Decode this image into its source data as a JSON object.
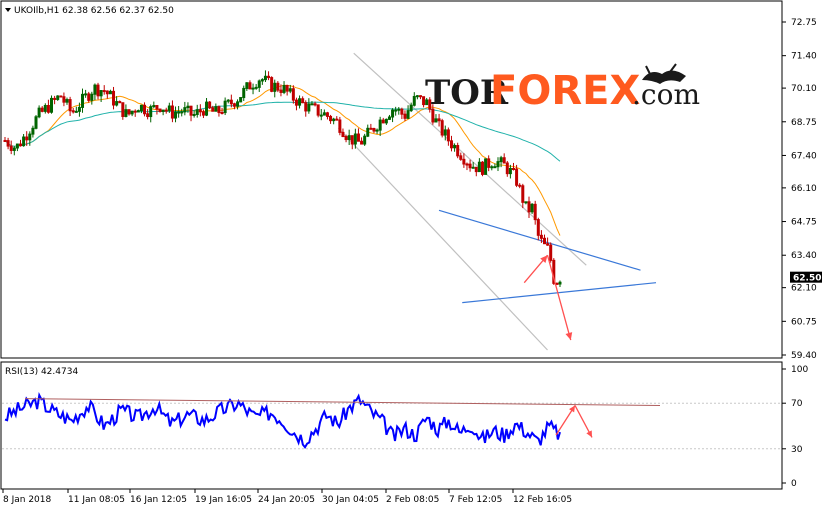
{
  "chart_data": {
    "type": "candlestick",
    "title": "UKOIlb,H1  62.38 62.56 62.37 62.50",
    "rsi_label": "RSI(13) 42.4734",
    "current_price_label": "62.50",
    "price_ticks": [
      "72.75",
      "71.40",
      "70.10",
      "68.75",
      "67.40",
      "66.10",
      "64.75",
      "63.40",
      "62.10",
      "60.75",
      "59.40"
    ],
    "price_tick_values": [
      72.75,
      71.4,
      70.1,
      68.75,
      67.4,
      66.1,
      64.75,
      63.4,
      62.1,
      60.75,
      59.4
    ],
    "price_range": [
      59.4,
      72.75
    ],
    "rsi_ticks": [
      "100",
      "70",
      "30",
      "0"
    ],
    "rsi_tick_values": [
      100,
      70,
      30,
      0
    ],
    "rsi_range": [
      0,
      100
    ],
    "x_ticks": [
      "8 Jan 2018",
      "11 Jan 08:05",
      "16 Jan 12:05",
      "19 Jan 16:05",
      "24 Jan 20:05",
      "30 Jan 04:05",
      "2 Feb 08:05",
      "7 Feb 12:05",
      "12 Feb 16:05"
    ],
    "close_path": [
      [
        0,
        68.0
      ],
      [
        0.02,
        67.7
      ],
      [
        0.04,
        68.3
      ],
      [
        0.06,
        69.0
      ],
      [
        0.08,
        69.4
      ],
      [
        0.1,
        69.8
      ],
      [
        0.12,
        69.1
      ],
      [
        0.14,
        69.6
      ],
      [
        0.16,
        70.1
      ],
      [
        0.18,
        70.0
      ],
      [
        0.2,
        69.5
      ],
      [
        0.22,
        69.0
      ],
      [
        0.24,
        69.4
      ],
      [
        0.26,
        69.2
      ],
      [
        0.28,
        69.4
      ],
      [
        0.3,
        69.1
      ],
      [
        0.32,
        69.2
      ],
      [
        0.34,
        69.0
      ],
      [
        0.36,
        69.3
      ],
      [
        0.38,
        69.1
      ],
      [
        0.4,
        69.4
      ],
      [
        0.42,
        69.7
      ],
      [
        0.44,
        70.2
      ],
      [
        0.46,
        70.5
      ],
      [
        0.48,
        70.2
      ],
      [
        0.5,
        70.1
      ],
      [
        0.52,
        69.7
      ],
      [
        0.54,
        69.4
      ],
      [
        0.56,
        69.2
      ],
      [
        0.58,
        69.0
      ],
      [
        0.6,
        68.7
      ],
      [
        0.62,
        68.1
      ],
      [
        0.64,
        67.9
      ],
      [
        0.66,
        68.4
      ],
      [
        0.68,
        68.9
      ],
      [
        0.7,
        69.3
      ],
      [
        0.72,
        69.0
      ],
      [
        0.74,
        69.7
      ],
      [
        0.76,
        69.5
      ],
      [
        0.78,
        68.6
      ],
      [
        0.8,
        68.0
      ],
      [
        0.82,
        67.5
      ],
      [
        0.84,
        67.0
      ],
      [
        0.86,
        66.9
      ],
      [
        0.88,
        67.2
      ],
      [
        0.9,
        67.0
      ],
      [
        0.92,
        66.5
      ],
      [
        0.94,
        65.2
      ],
      [
        0.95,
        65.3
      ],
      [
        0.96,
        64.2
      ],
      [
        0.97,
        63.8
      ],
      [
        0.98,
        63.6
      ],
      [
        0.985,
        63.0
      ],
      [
        0.99,
        62.3
      ],
      [
        1.0,
        62.5
      ]
    ],
    "series": [
      {
        "name": "",
        "color": "#ff9900"
      },
      {
        "name": "",
        "color": "#20b2aa"
      }
    ],
    "rsi_path": [
      [
        0,
        58
      ],
      [
        0.03,
        66
      ],
      [
        0.06,
        72
      ],
      [
        0.09,
        62
      ],
      [
        0.12,
        55
      ],
      [
        0.15,
        68
      ],
      [
        0.18,
        50
      ],
      [
        0.21,
        64
      ],
      [
        0.24,
        57
      ],
      [
        0.27,
        67
      ],
      [
        0.3,
        52
      ],
      [
        0.33,
        60
      ],
      [
        0.36,
        55
      ],
      [
        0.39,
        64
      ],
      [
        0.42,
        70
      ],
      [
        0.45,
        58
      ],
      [
        0.48,
        62
      ],
      [
        0.5,
        55
      ],
      [
        0.52,
        45
      ],
      [
        0.54,
        38
      ],
      [
        0.56,
        48
      ],
      [
        0.58,
        60
      ],
      [
        0.6,
        52
      ],
      [
        0.62,
        66
      ],
      [
        0.64,
        73
      ],
      [
        0.66,
        62
      ],
      [
        0.68,
        54
      ],
      [
        0.7,
        40
      ],
      [
        0.72,
        48
      ],
      [
        0.74,
        42
      ],
      [
        0.76,
        58
      ],
      [
        0.78,
        47
      ],
      [
        0.8,
        55
      ],
      [
        0.82,
        44
      ],
      [
        0.84,
        52
      ],
      [
        0.86,
        38
      ],
      [
        0.88,
        46
      ],
      [
        0.9,
        42
      ],
      [
        0.92,
        52
      ],
      [
        0.94,
        45
      ],
      [
        0.96,
        36
      ],
      [
        0.98,
        50
      ],
      [
        1.0,
        42
      ]
    ],
    "rsi_level_lines": [
      70,
      30
    ],
    "annotations": [
      {
        "kind": "channel-line",
        "color": "#c0c0c0",
        "from": [
          0.45,
          71.5
        ],
        "to": [
          0.75,
          63.0
        ]
      },
      {
        "kind": "channel-line",
        "color": "#c0c0c0",
        "from": [
          0.43,
          68.5
        ],
        "to": [
          0.7,
          59.6
        ]
      },
      {
        "kind": "triangle-line",
        "color": "#3a78d8",
        "from": [
          0.56,
          65.2
        ],
        "to": [
          0.82,
          62.8
        ]
      },
      {
        "kind": "triangle-line",
        "color": "#3a78d8",
        "from": [
          0.59,
          61.5
        ],
        "to": [
          0.84,
          62.3
        ]
      },
      {
        "kind": "arrow",
        "color": "#ff5050",
        "from": [
          0.67,
          62.3
        ],
        "to": [
          0.7,
          63.4
        ]
      },
      {
        "kind": "arrow",
        "color": "#ff5050",
        "from": [
          0.7,
          63.4
        ],
        "to": [
          0.73,
          60.0
        ]
      }
    ]
  },
  "logo": {
    "tor": "TOR",
    "forex": "FOREX",
    "com": ".com"
  }
}
